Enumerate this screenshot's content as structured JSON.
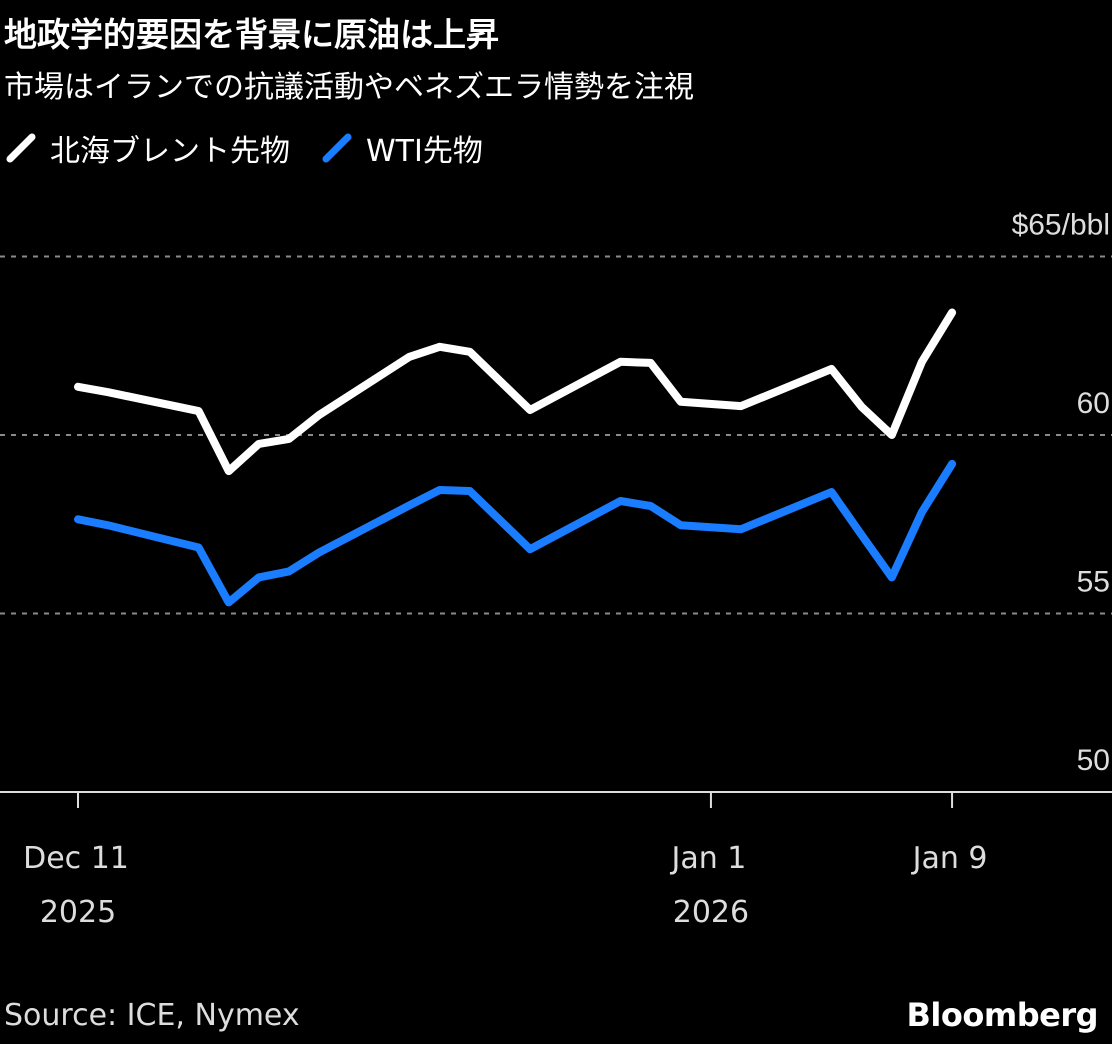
{
  "chart_data": {
    "type": "line",
    "title": "地政学的要因を背景に原油は上昇",
    "subtitle": "市場はイランでの抗議活動やベネズエラ情勢を注視",
    "ylabel": "$/bbl",
    "ylim": [
      50,
      65
    ],
    "yticks": [
      {
        "value": 50,
        "label": "50"
      },
      {
        "value": 55,
        "label": "55"
      },
      {
        "value": 60,
        "label": "60"
      },
      {
        "value": 65,
        "label": "$65/bbl"
      }
    ],
    "xticks": [
      {
        "date": "2025-12-11",
        "line1": "Dec 11",
        "line2": "2025"
      },
      {
        "date": "2026-01-01",
        "line1": "Jan 1",
        "line2": "2026"
      },
      {
        "date": "2026-01-09",
        "line1": "Jan 9",
        "line2": ""
      }
    ],
    "grid": true,
    "legend_placement": "top-left",
    "x": [
      "2025-12-11",
      "2025-12-12",
      "2025-12-15",
      "2025-12-16",
      "2025-12-17",
      "2025-12-18",
      "2025-12-19",
      "2025-12-22",
      "2025-12-23",
      "2025-12-24",
      "2025-12-26",
      "2025-12-29",
      "2025-12-30",
      "2025-12-31",
      "2026-01-02",
      "2026-01-05",
      "2026-01-06",
      "2026-01-07",
      "2026-01-08",
      "2026-01-09"
    ],
    "series": [
      {
        "name": "北海ブレント先物",
        "color": "#ffffff",
        "values": [
          61.35,
          61.2,
          60.67,
          58.99,
          59.75,
          59.89,
          60.56,
          62.19,
          62.47,
          62.33,
          60.7,
          62.05,
          62.02,
          60.93,
          60.81,
          61.85,
          60.79,
          60.0,
          62.05,
          63.43
        ]
      },
      {
        "name": "WTI先物",
        "color": "#1a7cff",
        "values": [
          57.64,
          57.47,
          56.85,
          55.31,
          56.01,
          56.18,
          56.71,
          58.03,
          58.46,
          58.43,
          56.8,
          58.15,
          58.01,
          57.47,
          57.36,
          58.4,
          57.2,
          56.01,
          57.84,
          59.19
        ]
      }
    ],
    "source": "Source: ICE, Nymex",
    "brand": "Bloomberg"
  }
}
